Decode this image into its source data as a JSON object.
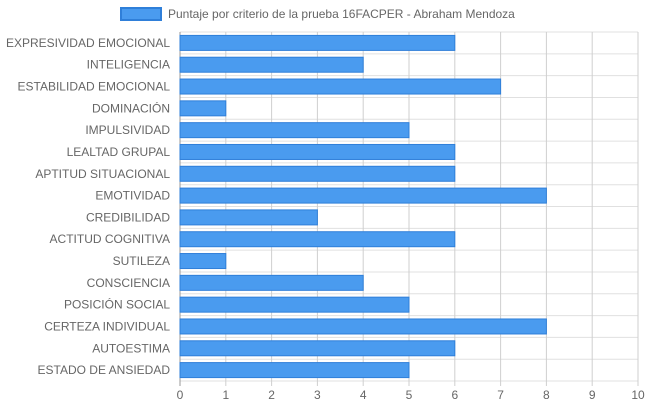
{
  "chart_data": {
    "type": "bar",
    "orientation": "horizontal",
    "categories": [
      "EXPRESIVIDAD EMOCIONAL",
      "INTELIGENCIA",
      "ESTABILIDAD EMOCIONAL",
      "DOMINACIÓN",
      "IMPULSIVIDAD",
      "LEALTAD GRUPAL",
      "APTITUD SITUACIONAL",
      "EMOTIVIDAD",
      "CREDIBILIDAD",
      "ACTITUD COGNITIVA",
      "SUTILEZA",
      "CONSCIENCIA",
      "POSICIÓN SOCIAL",
      "CERTEZA INDIVIDUAL",
      "AUTOESTIMA",
      "ESTADO DE ANSIEDAD"
    ],
    "series": [
      {
        "name": "Puntaje por criterio de la prueba 16FACPER - Abraham Mendoza",
        "values": [
          6,
          4,
          7,
          1,
          5,
          6,
          6,
          8,
          3,
          6,
          1,
          4,
          5,
          8,
          6,
          5
        ],
        "color": "#4a9bef",
        "border_color": "#2f7fd9"
      }
    ],
    "xlim": [
      0,
      10
    ],
    "x_ticks": [
      "0",
      "1",
      "2",
      "3",
      "4",
      "5",
      "6",
      "7",
      "8",
      "9",
      "10"
    ],
    "grid": true,
    "legend_position": "top-center"
  }
}
